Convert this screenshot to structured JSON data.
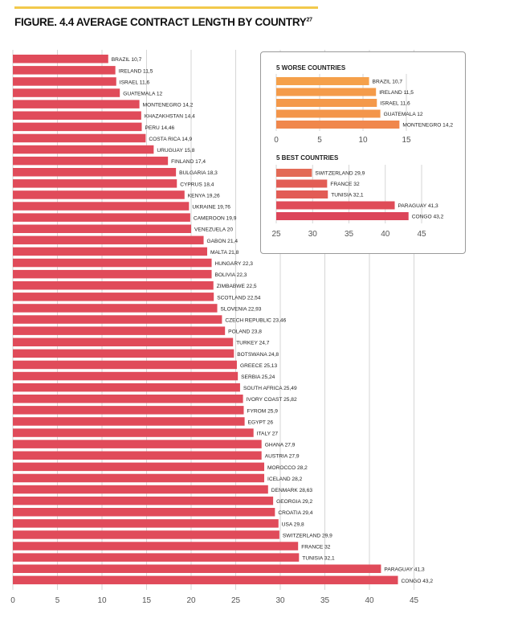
{
  "title": "FIGURE. 4.4 AVERAGE CONTRACT LENGTH BY COUNTRY",
  "title_superscript": "27",
  "colors": {
    "bar_start": "#f6a24a",
    "bar_end": "#e04b5a",
    "grid": "#d6d6d6",
    "axis_text": "#555555",
    "accent_line": "#f2c94c"
  },
  "chart_data": [
    {
      "type": "bar",
      "orientation": "horizontal",
      "title": "FIGURE. 4.4 AVERAGE CONTRACT LENGTH BY COUNTRY",
      "xlim": [
        0,
        50
      ],
      "xticks": [
        "0",
        "5",
        "10",
        "15",
        "20",
        "25",
        "30",
        "35",
        "40",
        "45"
      ],
      "grid": true,
      "categories": [
        "BRAZIL",
        "IRELAND",
        "ISRAEL",
        "GUATEMALA",
        "MONTENEGRO",
        "KHAZAKHSTAN",
        "PERU",
        "COSTA RICA",
        "URUGUAY",
        "FINLAND",
        "BULGARIA",
        "CYPRUS",
        "KENYA",
        "UKRAINE",
        "CAMEROON",
        "VENEZUELA",
        "GABON",
        "MALTA",
        "HUNGARY",
        "BOLIVIA",
        "ZIMBABWE",
        "SCOTLAND",
        "SLOVENIA",
        "CZECH REPUBLIC",
        "POLAND",
        "TURKEY",
        "BOTSWANA",
        "GREECE",
        "SERBIA",
        "SOUTH AFRICA",
        "IVORY COAST",
        "FYROM",
        "EGYPT",
        "ITALY",
        "GHANA",
        "AUSTRIA",
        "MOROCCO",
        "ICELAND",
        "DENMARK",
        "GEORGIA",
        "CROATIA",
        "USA",
        "SWITZERLAND",
        "FRANCE",
        "TUNISIA",
        "PARAGUAY",
        "CONGO"
      ],
      "values": [
        10.7,
        11.5,
        11.6,
        12,
        14.2,
        14.4,
        14.46,
        14.9,
        15.8,
        17.4,
        18.3,
        18.4,
        19.26,
        19.76,
        19.9,
        20,
        21.4,
        21.8,
        22.3,
        22.3,
        22.5,
        22.54,
        22.93,
        23.46,
        23.8,
        24.7,
        24.8,
        25.13,
        25.24,
        25.49,
        25.82,
        25.9,
        26,
        27,
        27.9,
        27.9,
        28.2,
        28.2,
        28.63,
        29.2,
        29.4,
        29.8,
        29.9,
        32,
        32.1,
        41.3,
        43.2
      ],
      "value_labels": [
        "10,7",
        "11,5",
        "11,6",
        "12",
        "14,2",
        "14,4",
        "14,46",
        "14,9",
        "15,8",
        "17,4",
        "18,3",
        "18,4",
        "19,26",
        "19,76",
        "19,9",
        "20",
        "21,4",
        "21,8",
        "22,3",
        "22,3",
        "22,5",
        "22,54",
        "22,93",
        "23,46",
        "23,8",
        "24,7",
        "24,8",
        "25,13",
        "25,24",
        "25,49",
        "25,82",
        "25,9",
        "26",
        "27",
        "27,9",
        "27,9",
        "28,2",
        "28,2",
        "28,63",
        "29,2",
        "29,4",
        "29,8",
        "29,9",
        "32",
        "32,1",
        "41,3",
        "43,2"
      ]
    },
    {
      "type": "bar",
      "orientation": "horizontal",
      "title": "5 WORSE COUNTRIES",
      "xlim": [
        0,
        15
      ],
      "xticks": [
        "0",
        "5",
        "10",
        "15"
      ],
      "categories": [
        "BRAZIL",
        "IRELAND",
        "ISRAEL",
        "GUATEMALA",
        "MONTENEGRO"
      ],
      "values": [
        10.7,
        11.5,
        11.6,
        12,
        14.2
      ],
      "value_labels": [
        "10,7",
        "11,5",
        "11,6",
        "12",
        "14,2"
      ]
    },
    {
      "type": "bar",
      "orientation": "horizontal",
      "title": "5 BEST COUNTRIES",
      "xlim": [
        25,
        45
      ],
      "xticks": [
        "25",
        "30",
        "35",
        "40",
        "45"
      ],
      "categories": [
        "SWITZERLAND",
        "FRANCE",
        "TUNISIA",
        "PARAGUAY",
        "CONGO"
      ],
      "values": [
        29.9,
        32,
        32.1,
        41.3,
        43.2
      ],
      "value_labels": [
        "29,9",
        "32",
        "32,1",
        "41,3",
        "43,2"
      ]
    }
  ]
}
